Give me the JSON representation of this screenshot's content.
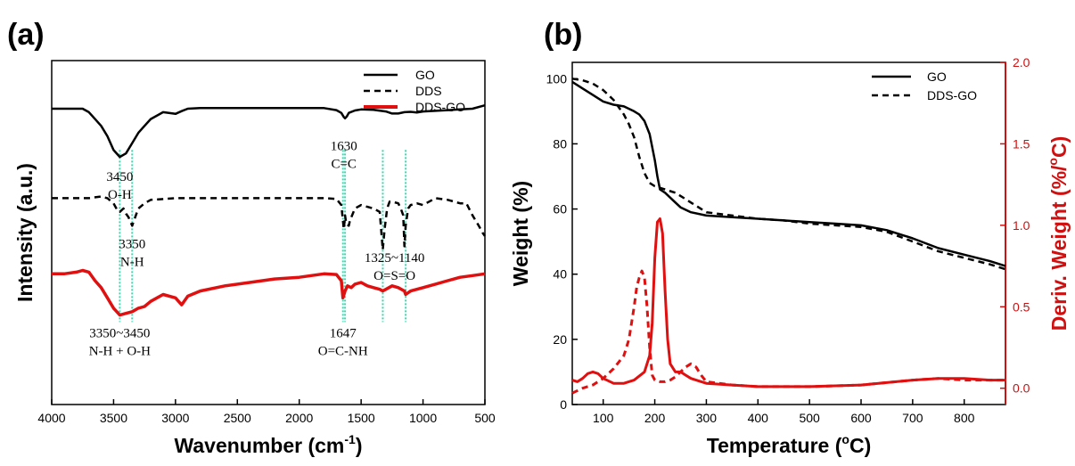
{
  "chart_data": [
    {
      "panel_label": "(a)",
      "type": "line",
      "xlabel": "Wavenumber (cm",
      "xlabel_sup": "-1",
      "xlabel_tail": ")",
      "ylabel": "Intensity (a.u.)",
      "xlim": [
        4000,
        500
      ],
      "xticks": [
        4000,
        3500,
        3000,
        2500,
        2000,
        1500,
        1000,
        500
      ],
      "legend": {
        "placement": "top-right",
        "entries": [
          "GO",
          "DDS",
          "DDS-GO"
        ]
      },
      "series": [
        {
          "name": "GO",
          "color": "#000000",
          "style": "solid",
          "x": [
            4000,
            3900,
            3800,
            3750,
            3700,
            3650,
            3600,
            3550,
            3500,
            3450,
            3400,
            3350,
            3300,
            3250,
            3200,
            3100,
            3000,
            2950,
            2900,
            2800,
            2700,
            2500,
            2300,
            2000,
            1800,
            1700,
            1660,
            1640,
            1630,
            1615,
            1600,
            1550,
            1500,
            1400,
            1300,
            1250,
            1200,
            1150,
            1100,
            1050,
            1000,
            900,
            800,
            700,
            600,
            500
          ],
          "y": [
            0.86,
            0.86,
            0.86,
            0.86,
            0.85,
            0.83,
            0.81,
            0.78,
            0.74,
            0.72,
            0.73,
            0.76,
            0.79,
            0.81,
            0.83,
            0.85,
            0.845,
            0.853,
            0.86,
            0.862,
            0.862,
            0.862,
            0.862,
            0.862,
            0.862,
            0.856,
            0.848,
            0.836,
            0.832,
            0.838,
            0.848,
            0.855,
            0.858,
            0.857,
            0.852,
            0.846,
            0.846,
            0.85,
            0.851,
            0.849,
            0.852,
            0.854,
            0.856,
            0.858,
            0.86,
            0.87
          ]
        },
        {
          "name": "DDS",
          "color": "#000000",
          "style": "dashed",
          "x": [
            4000,
            3900,
            3800,
            3700,
            3600,
            3550,
            3500,
            3470,
            3450,
            3420,
            3400,
            3380,
            3350,
            3320,
            3300,
            3250,
            3200,
            3000,
            2800,
            2500,
            2200,
            2000,
            1800,
            1700,
            1660,
            1640,
            1630,
            1620,
            1600,
            1590,
            1550,
            1500,
            1450,
            1400,
            1350,
            1325,
            1310,
            1290,
            1270,
            1250,
            1200,
            1180,
            1160,
            1150,
            1140,
            1120,
            1100,
            1050,
            1000,
            900,
            800,
            700,
            650,
            600,
            550,
            520,
            500
          ],
          "y": [
            0.6,
            0.6,
            0.6,
            0.6,
            0.605,
            0.6,
            0.585,
            0.565,
            0.56,
            0.57,
            0.555,
            0.545,
            0.52,
            0.55,
            0.57,
            0.585,
            0.595,
            0.6,
            0.6,
            0.6,
            0.6,
            0.6,
            0.6,
            0.598,
            0.58,
            0.51,
            0.55,
            0.525,
            0.52,
            0.535,
            0.57,
            0.58,
            0.575,
            0.57,
            0.56,
            0.45,
            0.51,
            0.57,
            0.59,
            0.59,
            0.585,
            0.57,
            0.55,
            0.46,
            0.52,
            0.57,
            0.58,
            0.585,
            0.58,
            0.6,
            0.595,
            0.585,
            0.585,
            0.55,
            0.52,
            0.5,
            0.49
          ]
        },
        {
          "name": "DDS-GO",
          "color": "#e01010",
          "style": "solid",
          "x": [
            4000,
            3900,
            3800,
            3750,
            3700,
            3650,
            3600,
            3550,
            3500,
            3450,
            3400,
            3350,
            3300,
            3250,
            3200,
            3100,
            3000,
            2950,
            2900,
            2800,
            2600,
            2400,
            2200,
            2000,
            1800,
            1700,
            1660,
            1647,
            1630,
            1610,
            1580,
            1550,
            1500,
            1450,
            1400,
            1350,
            1325,
            1300,
            1250,
            1200,
            1150,
            1140,
            1100,
            1050,
            1000,
            900,
            800,
            700,
            600,
            500
          ],
          "y": [
            0.38,
            0.38,
            0.385,
            0.39,
            0.385,
            0.36,
            0.34,
            0.31,
            0.28,
            0.26,
            0.265,
            0.27,
            0.28,
            0.285,
            0.3,
            0.32,
            0.31,
            0.29,
            0.315,
            0.33,
            0.345,
            0.355,
            0.365,
            0.37,
            0.38,
            0.378,
            0.36,
            0.31,
            0.33,
            0.345,
            0.34,
            0.35,
            0.355,
            0.345,
            0.34,
            0.335,
            0.33,
            0.335,
            0.345,
            0.34,
            0.33,
            0.32,
            0.33,
            0.335,
            0.34,
            0.35,
            0.36,
            0.37,
            0.375,
            0.38
          ]
        }
      ],
      "guide_lines": [
        3450,
        3350,
        1630,
        1647,
        1325,
        1140
      ],
      "annotations": [
        {
          "wavenumber_line1": "3450",
          "group_line2": "O-H",
          "x": 3450,
          "y": 0.65
        },
        {
          "wavenumber_line1": "1630",
          "group_line2": "C=C",
          "x": 1640,
          "y": 0.74
        },
        {
          "wavenumber_line1": "3350",
          "group_line2": "N-H",
          "x": 3350,
          "y": 0.455
        },
        {
          "wavenumber_line1": "1325~1140",
          "group_line2": "O=S=O",
          "x": 1230,
          "y": 0.415
        },
        {
          "wavenumber_line1": "3350~3450",
          "group_line2": "N-H + O-H",
          "x": 3450,
          "y": 0.195
        },
        {
          "wavenumber_line1": "1647",
          "group_line2": "O=C-NH",
          "x": 1647,
          "y": 0.195
        }
      ]
    },
    {
      "panel_label": "(b)",
      "type": "line",
      "xlabel": "Temperature (",
      "xlabel_sup": "o",
      "xlabel_tail": "C)",
      "ylabel": "Weight (%)",
      "y2label": "Deriv. Weight (%/",
      "y2label_sup": "o",
      "y2label_tail": "C)",
      "xlim": [
        40,
        880
      ],
      "ylim": [
        0,
        105
      ],
      "y2lim": [
        -0.1,
        2.0
      ],
      "xticks": [
        100,
        200,
        300,
        400,
        500,
        600,
        700,
        800
      ],
      "yticks": [
        0,
        20,
        40,
        60,
        80,
        100
      ],
      "y2ticks": [
        "0.0",
        "0.5",
        "1.0",
        "1.5",
        "2.0"
      ],
      "legend": {
        "placement": "top-right",
        "entries": [
          "GO",
          "DDS-GO"
        ]
      },
      "series": [
        {
          "name": "GO",
          "axis": "y",
          "color": "#000000",
          "style": "solid",
          "x": [
            40,
            60,
            80,
            100,
            120,
            140,
            160,
            170,
            180,
            190,
            200,
            205,
            210,
            215,
            220,
            230,
            240,
            250,
            270,
            300,
            350,
            400,
            450,
            500,
            550,
            600,
            650,
            700,
            750,
            800,
            850,
            880
          ],
          "y": [
            99,
            97,
            95,
            93,
            92,
            91.5,
            90,
            89,
            87,
            83,
            75,
            70,
            66,
            65.5,
            65,
            63.5,
            62,
            60.5,
            59,
            58,
            57.5,
            57,
            56.5,
            56,
            55.5,
            55,
            53.5,
            51,
            48,
            46,
            44,
            42.5
          ]
        },
        {
          "name": "DDS-GO",
          "axis": "y",
          "color": "#000000",
          "style": "dashed",
          "x": [
            40,
            60,
            80,
            100,
            120,
            140,
            150,
            160,
            170,
            180,
            190,
            200,
            210,
            220,
            230,
            240,
            250,
            270,
            300,
            350,
            400,
            450,
            500,
            550,
            600,
            650,
            700,
            750,
            800,
            850,
            880
          ],
          "y": [
            100,
            99.5,
            98.5,
            96.5,
            93.5,
            89,
            86,
            82,
            76,
            71,
            68,
            67,
            66.5,
            66,
            65.5,
            65,
            64,
            62,
            59,
            58,
            57,
            56.5,
            55.5,
            55,
            54.5,
            53,
            50,
            47,
            45,
            43,
            41.5
          ]
        },
        {
          "name": "GO",
          "axis": "y2",
          "color": "#e01010",
          "style": "solid",
          "x": [
            40,
            50,
            60,
            70,
            80,
            90,
            100,
            120,
            140,
            160,
            180,
            190,
            195,
            200,
            205,
            210,
            215,
            220,
            225,
            230,
            240,
            250,
            260,
            270,
            280,
            300,
            350,
            400,
            500,
            600,
            700,
            750,
            800,
            850,
            880
          ],
          "y": [
            0.05,
            0.04,
            0.06,
            0.09,
            0.1,
            0.09,
            0.06,
            0.03,
            0.03,
            0.05,
            0.1,
            0.2,
            0.4,
            0.8,
            1.02,
            1.04,
            0.95,
            0.6,
            0.3,
            0.15,
            0.1,
            0.1,
            0.08,
            0.06,
            0.05,
            0.03,
            0.02,
            0.01,
            0.01,
            0.02,
            0.05,
            0.06,
            0.06,
            0.05,
            0.05
          ]
        },
        {
          "name": "DDS-GO",
          "axis": "y2",
          "color": "#e01010",
          "style": "dashed",
          "x": [
            40,
            60,
            80,
            100,
            120,
            140,
            150,
            160,
            165,
            170,
            175,
            180,
            185,
            190,
            195,
            200,
            210,
            220,
            230,
            240,
            250,
            260,
            270,
            280,
            290,
            300,
            350,
            400,
            500,
            600,
            700,
            750,
            800,
            880
          ],
          "y": [
            -0.03,
            0.0,
            0.02,
            0.06,
            0.12,
            0.2,
            0.3,
            0.5,
            0.62,
            0.68,
            0.72,
            0.68,
            0.5,
            0.25,
            0.08,
            0.05,
            0.04,
            0.04,
            0.05,
            0.07,
            0.1,
            0.13,
            0.15,
            0.13,
            0.08,
            0.04,
            0.02,
            0.01,
            0.01,
            0.02,
            0.05,
            0.06,
            0.05,
            0.05
          ]
        }
      ]
    }
  ]
}
